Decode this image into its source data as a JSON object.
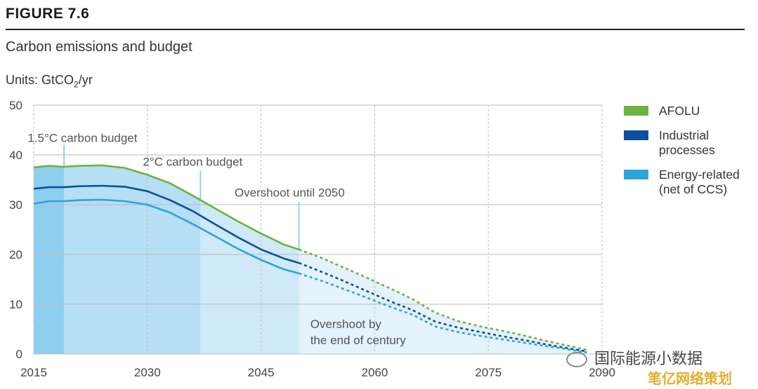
{
  "figure": {
    "label": "FIGURE 7.6",
    "title": "Carbon emissions and budget",
    "units_prefix": "Units: GtCO",
    "units_sub": "2",
    "units_suffix": "/yr"
  },
  "chart_data": {
    "type": "area",
    "x_ticks": [
      2015,
      2030,
      2045,
      2060,
      2075,
      2090
    ],
    "y_ticks": [
      0,
      10,
      20,
      30,
      40,
      50
    ],
    "xlim": [
      2015,
      2090
    ],
    "ylim": [
      0,
      50
    ],
    "grid": "dashed vertical and solid horizontal gridlines",
    "legend_position": "right",
    "series": [
      {
        "name": "AFOLU",
        "color": "#6db33f",
        "x": [
          2015,
          2017,
          2019,
          2021,
          2024,
          2027,
          2030,
          2033,
          2036,
          2039,
          2042,
          2045,
          2048,
          2050,
          2053,
          2056,
          2059,
          2062,
          2065,
          2068,
          2071,
          2074,
          2077,
          2080,
          2083,
          2086,
          2088
        ],
        "values": [
          37.5,
          37.8,
          37.6,
          37.8,
          37.9,
          37.4,
          36.0,
          34.3,
          31.8,
          29.2,
          26.6,
          24.2,
          22.0,
          21.0,
          19.3,
          17.3,
          15.3,
          13.2,
          11.0,
          8.3,
          6.6,
          5.5,
          4.6,
          3.6,
          2.5,
          1.5,
          0.8
        ]
      },
      {
        "name": "Industrial processes",
        "color": "#0d4f9c",
        "x": [
          2015,
          2017,
          2019,
          2021,
          2024,
          2027,
          2030,
          2033,
          2036,
          2039,
          2042,
          2045,
          2048,
          2050,
          2053,
          2056,
          2059,
          2062,
          2065,
          2068,
          2071,
          2074,
          2077,
          2080,
          2083,
          2086,
          2088
        ],
        "values": [
          33.2,
          33.5,
          33.5,
          33.7,
          33.8,
          33.6,
          32.7,
          30.9,
          28.7,
          26.0,
          23.4,
          21.0,
          19.2,
          18.3,
          16.5,
          14.6,
          12.6,
          10.6,
          8.8,
          6.5,
          5.3,
          4.4,
          3.5,
          2.7,
          1.8,
          1.0,
          0.5
        ]
      },
      {
        "name": "Energy-related (net of CCS)",
        "color": "#2aa5dc",
        "x": [
          2015,
          2017,
          2019,
          2021,
          2024,
          2027,
          2030,
          2033,
          2036,
          2039,
          2042,
          2045,
          2048,
          2050,
          2053,
          2056,
          2059,
          2062,
          2065,
          2068,
          2071,
          2074,
          2077,
          2080,
          2083,
          2086,
          2088
        ],
        "values": [
          30.2,
          30.7,
          30.7,
          30.9,
          31.0,
          30.7,
          30.0,
          28.4,
          26.1,
          23.6,
          21.1,
          18.9,
          17.0,
          16.2,
          14.7,
          13.0,
          11.3,
          9.5,
          7.9,
          5.5,
          4.4,
          3.6,
          2.9,
          2.2,
          1.5,
          0.8,
          0.3
        ]
      }
    ],
    "solid_until": 2050,
    "budget_regions": [
      {
        "label": "1.5°C carbon budget",
        "end": 2019,
        "color": "#8fcfee"
      },
      {
        "label": "2°C carbon budget",
        "end": 2037,
        "color": "#b6def5"
      },
      {
        "label": "Overshoot until 2050",
        "end": 2050,
        "color": "#cfe9f8"
      },
      {
        "label": "Overshoot by the end of century",
        "end": 2088,
        "color": "#e3f2fb"
      }
    ],
    "annotations": {
      "budget15": "1.5°C carbon budget",
      "budget2": "2°C carbon budget",
      "overshoot2050": "Overshoot until 2050",
      "overshoot_century_line1": "Overshoot by",
      "overshoot_century_line2": "the end of century"
    }
  },
  "legend": {
    "items": [
      {
        "line1": "AFOLU",
        "line2": "",
        "color": "#6db33f"
      },
      {
        "line1": "Industrial",
        "line2": "processes",
        "color": "#0d4f9c"
      },
      {
        "line1": "Energy-related",
        "line2": "(net of CCS)",
        "color": "#2aa5dc"
      }
    ]
  },
  "watermark": {
    "text": "国际能源小数据",
    "site": "笔亿网络策划"
  }
}
